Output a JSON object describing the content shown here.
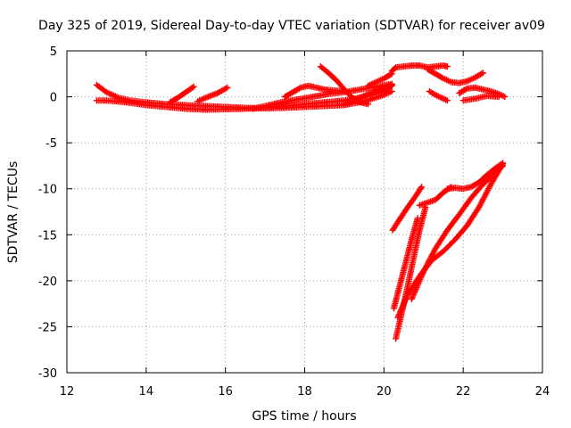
{
  "chart_data": {
    "type": "scatter",
    "title": "Day 325 of 2019, Sidereal Day-to-day VTEC variation (SDTVAR) for receiver av09",
    "xlabel": "GPS time / hours",
    "ylabel": "SDTVAR / TECUs",
    "xlim": [
      12,
      24
    ],
    "ylim": [
      -30,
      5
    ],
    "xticks": [
      12,
      14,
      16,
      18,
      20,
      22,
      24
    ],
    "yticks": [
      5,
      0,
      -5,
      -10,
      -15,
      -20,
      -25,
      -30
    ],
    "xtick_labels": [
      "12",
      "14",
      "16",
      "18",
      "20",
      "22",
      "24"
    ],
    "ytick_labels": [
      "5",
      "0",
      "-5",
      "-10",
      "-15",
      "-20",
      "-25",
      "-30"
    ],
    "grid": true,
    "legend": "none",
    "marker": "plus",
    "color": "#ff0000",
    "series": [
      {
        "x": [
          12.75,
          13.0,
          13.3,
          13.6,
          14.0,
          14.5,
          15.0,
          15.5,
          16.0,
          16.5,
          17.0,
          17.5,
          18.0,
          18.5,
          19.0,
          19.5,
          20.0,
          20.2
        ],
        "y": [
          1.3,
          0.5,
          -0.1,
          -0.4,
          -0.6,
          -0.8,
          -0.9,
          -1.0,
          -1.1,
          -1.2,
          -1.25,
          -1.2,
          -1.1,
          -1.0,
          -0.9,
          -0.5,
          0.2,
          0.6
        ]
      },
      {
        "x": [
          12.75,
          13.0,
          13.5,
          14.0,
          14.5,
          15.0,
          15.5,
          16.0,
          16.5,
          17.0,
          17.5,
          18.0,
          18.5,
          19.0,
          19.5,
          20.0,
          20.2
        ],
        "y": [
          -0.4,
          -0.4,
          -0.6,
          -0.9,
          -1.1,
          -1.3,
          -1.4,
          -1.35,
          -1.3,
          -1.2,
          -1.0,
          -0.8,
          -0.6,
          -0.4,
          0.0,
          0.6,
          1.2
        ]
      },
      {
        "x": [
          14.6,
          14.8,
          15.0,
          15.2
        ],
        "y": [
          -0.6,
          -0.1,
          0.5,
          1.1
        ]
      },
      {
        "x": [
          15.3,
          15.5,
          15.8,
          16.05
        ],
        "y": [
          -0.5,
          -0.1,
          0.4,
          1.0
        ]
      },
      {
        "x": [
          16.7,
          17.0,
          17.4,
          17.8,
          18.2,
          18.6,
          19.0,
          19.4,
          19.8,
          20.2
        ],
        "y": [
          -1.3,
          -1.0,
          -0.6,
          -0.3,
          0.0,
          0.3,
          0.5,
          0.8,
          1.1,
          1.4
        ]
      },
      {
        "x": [
          17.5,
          17.7,
          17.9,
          18.1,
          18.3,
          18.5,
          18.7,
          19.0
        ],
        "y": [
          0.0,
          0.5,
          1.0,
          1.2,
          1.0,
          0.8,
          0.7,
          0.6
        ]
      },
      {
        "x": [
          18.4,
          18.6,
          18.8,
          19.0,
          19.2,
          19.4,
          19.6
        ],
        "y": [
          3.3,
          2.6,
          1.8,
          0.8,
          -0.1,
          -0.6,
          -0.8
        ]
      },
      {
        "x": [
          19.0,
          19.3,
          19.6,
          19.9,
          20.2
        ],
        "y": [
          -0.8,
          -0.3,
          0.3,
          0.8,
          1.3
        ]
      },
      {
        "x": [
          19.6,
          19.8,
          20.0,
          20.2
        ],
        "y": [
          1.2,
          1.6,
          2.0,
          2.5
        ]
      },
      {
        "x": [
          20.2,
          20.3,
          20.5,
          20.7,
          20.9,
          21.1,
          21.3,
          21.5,
          21.6
        ],
        "y": [
          2.8,
          3.2,
          3.3,
          3.4,
          3.4,
          3.2,
          3.3,
          3.4,
          3.3
        ]
      },
      {
        "x": [
          21.1,
          21.3,
          21.5,
          21.7,
          21.9,
          22.1,
          22.3,
          22.5
        ],
        "y": [
          3.0,
          2.5,
          2.0,
          1.6,
          1.5,
          1.7,
          2.1,
          2.6
        ]
      },
      {
        "x": [
          21.15,
          21.3,
          21.45,
          21.6
        ],
        "y": [
          0.6,
          0.2,
          -0.1,
          -0.4
        ]
      },
      {
        "x": [
          21.9,
          22.1,
          22.3,
          22.5,
          22.7,
          22.9,
          23.05
        ],
        "y": [
          0.4,
          0.9,
          1.0,
          0.8,
          0.6,
          0.3,
          0.0
        ]
      },
      {
        "x": [
          22.0,
          22.3,
          22.6,
          22.9
        ],
        "y": [
          -0.4,
          -0.2,
          0.1,
          0.0
        ]
      },
      {
        "x": [
          20.22,
          20.4,
          20.6,
          20.8,
          20.95
        ],
        "y": [
          -14.5,
          -13.3,
          -12.0,
          -10.8,
          -9.8
        ]
      },
      {
        "x": [
          20.25,
          20.4,
          20.55,
          20.7,
          20.85
        ],
        "y": [
          -23.0,
          -20.5,
          -18.0,
          -15.5,
          -13.2
        ]
      },
      {
        "x": [
          20.3,
          20.45,
          20.6,
          20.75,
          20.9,
          21.05
        ],
        "y": [
          -26.3,
          -23.5,
          -20.6,
          -17.5,
          -14.5,
          -12.0
        ]
      },
      {
        "x": [
          20.35,
          20.6,
          20.9,
          21.2,
          21.5,
          21.8,
          22.1,
          22.4,
          22.7,
          23.0
        ],
        "y": [
          -24.0,
          -21.5,
          -19.5,
          -17.8,
          -16.8,
          -15.5,
          -14.0,
          -12.0,
          -9.5,
          -7.3
        ]
      },
      {
        "x": [
          20.9,
          21.1,
          21.3,
          21.5,
          21.7
        ],
        "y": [
          -11.8,
          -11.5,
          -11.2,
          -10.4,
          -9.8
        ]
      },
      {
        "x": [
          21.6,
          21.8,
          22.0,
          22.2,
          22.4,
          22.6,
          22.8,
          23.0
        ],
        "y": [
          -10.0,
          -9.9,
          -10.0,
          -9.8,
          -9.3,
          -8.5,
          -7.8,
          -7.2
        ]
      },
      {
        "x": [
          20.7,
          21.0,
          21.3,
          21.6,
          21.9,
          22.2,
          22.5,
          22.8,
          23.0
        ],
        "y": [
          -22.0,
          -19.0,
          -16.5,
          -14.5,
          -12.8,
          -11.0,
          -9.5,
          -8.3,
          -7.5
        ]
      }
    ]
  }
}
